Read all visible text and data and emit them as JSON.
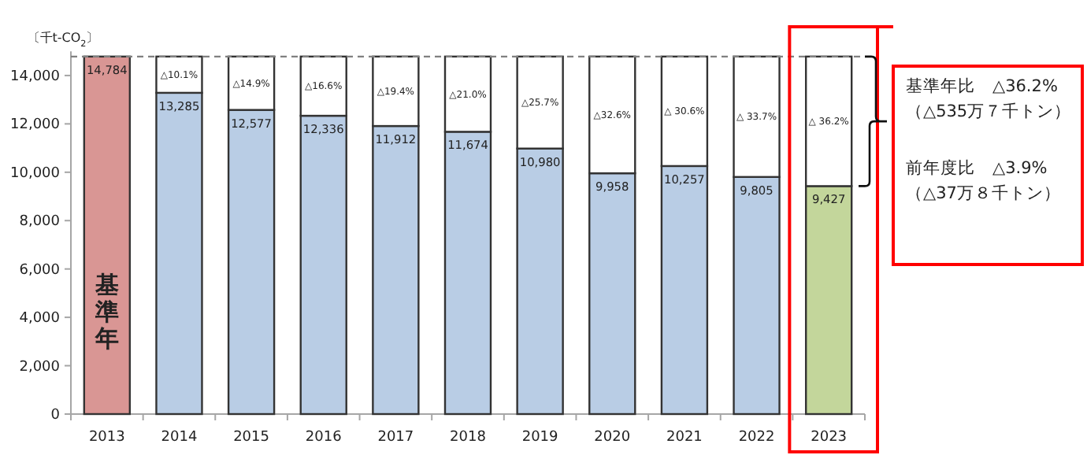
{
  "chart_data": {
    "type": "bar",
    "stacked": true,
    "ylabel": "〔千t-CO$_{2}$〕",
    "categories": [
      "2013",
      "2014",
      "2015",
      "2016",
      "2017",
      "2018",
      "2019",
      "2020",
      "2021",
      "2022",
      "2023"
    ],
    "series": [
      {
        "values": [
          14784,
          13285,
          12577,
          12336,
          11912,
          11674,
          10980,
          9958,
          10257,
          9805,
          9427
        ],
        "colors": [
          "#d99694",
          "#b9cde5",
          "#b9cde5",
          "#b9cde5",
          "#b9cde5",
          "#b9cde5",
          "#b9cde5",
          "#b9cde5",
          "#b9cde5",
          "#b9cde5",
          "#c3d69b"
        ],
        "value_labels": [
          "14,784",
          "13,285",
          "12,577",
          "12,336",
          "11,912",
          "11,674",
          "10,980",
          "9,958",
          "10,257",
          "9,805",
          "9,427"
        ]
      },
      {
        "values": [
          null,
          1499,
          2207,
          2448,
          2872,
          3110,
          3804,
          4826,
          4527,
          4979,
          5357
        ],
        "color": "#ffffff"
      }
    ],
    "ylim": [
      0,
      15000
    ],
    "yticks": [
      {
        "value": 0,
        "label": "0"
      },
      {
        "value": 2000,
        "label": "2,000"
      },
      {
        "value": 4000,
        "label": "4,000"
      },
      {
        "value": 6000,
        "label": "6,000"
      },
      {
        "value": 8000,
        "label": "8,000"
      },
      {
        "value": 10000,
        "label": "10,000"
      },
      {
        "value": 12000,
        "label": "12,000"
      },
      {
        "value": 14000,
        "label": "14,000"
      }
    ],
    "ref_lines": [
      {
        "axis": "y",
        "value": 14784,
        "line_style": "dashed",
        "color": "#808080"
      }
    ],
    "annotations": [
      "基準年",
      "基準年比　△36.2%",
      "（△535万７千トン）",
      "前年度比　△3.9%",
      "（△37万８千トン）",
      "△10.1%",
      "△14.9%",
      "△16.6%",
      "△19.4%",
      "△21.0%",
      "△25.7%",
      "△32.6%",
      "△ 30.6%",
      "△ 33.7%",
      "△ 36.2%"
    ]
  }
}
